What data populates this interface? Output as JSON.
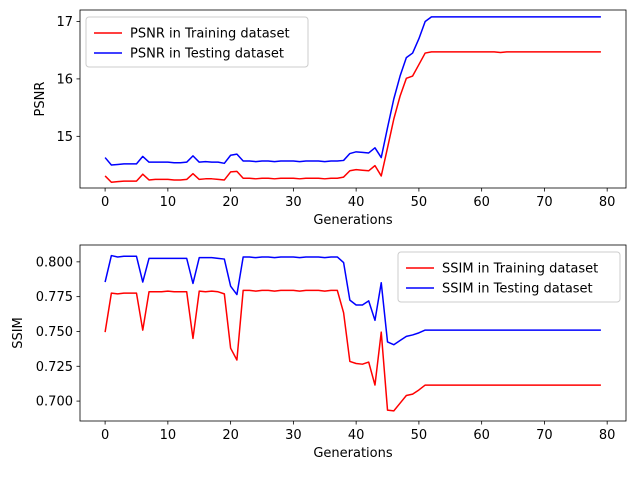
{
  "chart_data": [
    {
      "type": "line",
      "xlabel": "Generations",
      "ylabel": "PSNR",
      "xlim": [
        -4,
        83
      ],
      "ylim": [
        14.1,
        17.2
      ],
      "xticks": [
        0,
        10,
        20,
        30,
        40,
        50,
        60,
        70,
        80
      ],
      "yticks": [
        15,
        16,
        17
      ],
      "legend_position": "top-left",
      "series": [
        {
          "name": "PSNR in Training dataset",
          "color": "#ff0000",
          "x": [
            0,
            1,
            2,
            3,
            4,
            5,
            6,
            7,
            8,
            9,
            10,
            11,
            12,
            13,
            14,
            15,
            16,
            17,
            18,
            19,
            20,
            21,
            22,
            23,
            24,
            25,
            26,
            27,
            28,
            29,
            30,
            31,
            32,
            33,
            34,
            35,
            36,
            37,
            38,
            39,
            40,
            41,
            42,
            43,
            44,
            45,
            46,
            47,
            48,
            49,
            50,
            51,
            52,
            53,
            54,
            55,
            56,
            57,
            58,
            59,
            60,
            61,
            62,
            63,
            64,
            65,
            66,
            67,
            68,
            69,
            70,
            71,
            72,
            73,
            74,
            75,
            76,
            77,
            78,
            79
          ],
          "y": [
            14.31,
            14.2,
            14.21,
            14.22,
            14.22,
            14.22,
            14.34,
            14.24,
            14.25,
            14.25,
            14.25,
            14.24,
            14.24,
            14.25,
            14.35,
            14.25,
            14.26,
            14.26,
            14.25,
            14.24,
            14.38,
            14.39,
            14.27,
            14.27,
            14.26,
            14.27,
            14.27,
            14.26,
            14.27,
            14.27,
            14.27,
            14.26,
            14.27,
            14.27,
            14.27,
            14.26,
            14.27,
            14.27,
            14.29,
            14.4,
            14.42,
            14.41,
            14.4,
            14.49,
            14.31,
            14.8,
            15.3,
            15.7,
            16.01,
            16.05,
            16.25,
            16.45,
            16.47,
            16.47,
            16.47,
            16.47,
            16.47,
            16.47,
            16.47,
            16.47,
            16.47,
            16.47,
            16.47,
            16.46,
            16.47,
            16.47,
            16.47,
            16.47,
            16.47,
            16.47,
            16.47,
            16.47,
            16.47,
            16.47,
            16.47,
            16.47,
            16.47,
            16.47,
            16.47,
            16.47
          ]
        },
        {
          "name": "PSNR in Testing dataset",
          "color": "#0000ff",
          "x": [
            0,
            1,
            2,
            3,
            4,
            5,
            6,
            7,
            8,
            9,
            10,
            11,
            12,
            13,
            14,
            15,
            16,
            17,
            18,
            19,
            20,
            21,
            22,
            23,
            24,
            25,
            26,
            27,
            28,
            29,
            30,
            31,
            32,
            33,
            34,
            35,
            36,
            37,
            38,
            39,
            40,
            41,
            42,
            43,
            44,
            45,
            46,
            47,
            48,
            49,
            50,
            51,
            52,
            53,
            54,
            55,
            56,
            57,
            58,
            59,
            60,
            61,
            62,
            63,
            64,
            65,
            66,
            67,
            68,
            69,
            70,
            71,
            72,
            73,
            74,
            75,
            76,
            77,
            78,
            79
          ],
          "y": [
            14.63,
            14.5,
            14.51,
            14.52,
            14.52,
            14.52,
            14.65,
            14.55,
            14.55,
            14.55,
            14.55,
            14.54,
            14.54,
            14.55,
            14.66,
            14.55,
            14.56,
            14.55,
            14.55,
            14.53,
            14.67,
            14.69,
            14.57,
            14.57,
            14.56,
            14.57,
            14.57,
            14.56,
            14.57,
            14.57,
            14.57,
            14.56,
            14.57,
            14.57,
            14.57,
            14.56,
            14.57,
            14.57,
            14.58,
            14.7,
            14.73,
            14.72,
            14.71,
            14.8,
            14.63,
            15.15,
            15.65,
            16.05,
            16.37,
            16.45,
            16.7,
            17.0,
            17.08,
            17.08,
            17.08,
            17.08,
            17.08,
            17.08,
            17.08,
            17.08,
            17.08,
            17.08,
            17.08,
            17.08,
            17.08,
            17.08,
            17.08,
            17.08,
            17.08,
            17.08,
            17.08,
            17.08,
            17.08,
            17.08,
            17.08,
            17.08,
            17.08,
            17.08,
            17.08,
            17.08
          ]
        }
      ]
    },
    {
      "type": "line",
      "xlabel": "Generations",
      "ylabel": "SSIM",
      "xlim": [
        -4,
        83
      ],
      "ylim": [
        0.6857,
        0.8121
      ],
      "xticks": [
        0,
        10,
        20,
        30,
        40,
        50,
        60,
        70,
        80
      ],
      "yticks": [
        0.7,
        0.725,
        0.75,
        0.775,
        0.8
      ],
      "legend_position": "top-right",
      "series": [
        {
          "name": "SSIM in Training dataset",
          "color": "#ff0000",
          "x": [
            0,
            1,
            2,
            3,
            4,
            5,
            6,
            7,
            8,
            9,
            10,
            11,
            12,
            13,
            14,
            15,
            16,
            17,
            18,
            19,
            20,
            21,
            22,
            23,
            24,
            25,
            26,
            27,
            28,
            29,
            30,
            31,
            32,
            33,
            34,
            35,
            36,
            37,
            38,
            39,
            40,
            41,
            42,
            43,
            44,
            45,
            46,
            47,
            48,
            49,
            50,
            51,
            52,
            53,
            54,
            55,
            56,
            57,
            58,
            59,
            60,
            61,
            62,
            63,
            64,
            65,
            66,
            67,
            68,
            69,
            70,
            71,
            72,
            73,
            74,
            75,
            76,
            77,
            78,
            79
          ],
          "y": [
            0.7495,
            0.7775,
            0.777,
            0.7775,
            0.7775,
            0.7775,
            0.751,
            0.7785,
            0.7785,
            0.7785,
            0.779,
            0.7785,
            0.7785,
            0.7785,
            0.745,
            0.779,
            0.7785,
            0.779,
            0.7785,
            0.777,
            0.738,
            0.7295,
            0.7795,
            0.7795,
            0.779,
            0.7795,
            0.7795,
            0.779,
            0.7795,
            0.7795,
            0.7795,
            0.779,
            0.7795,
            0.7795,
            0.7795,
            0.779,
            0.7795,
            0.7795,
            0.7635,
            0.7285,
            0.727,
            0.7265,
            0.728,
            0.7115,
            0.7495,
            0.6935,
            0.693,
            0.6985,
            0.704,
            0.705,
            0.708,
            0.7115,
            0.7115,
            0.7115,
            0.7115,
            0.7115,
            0.7115,
            0.7115,
            0.7115,
            0.7115,
            0.7115,
            0.7115,
            0.7115,
            0.7115,
            0.7115,
            0.7115,
            0.7115,
            0.7115,
            0.7115,
            0.7115,
            0.7115,
            0.7115,
            0.7115,
            0.7115,
            0.7115,
            0.7115,
            0.7115,
            0.7115,
            0.7115,
            0.7115
          ]
        },
        {
          "name": "SSIM in Testing dataset",
          "color": "#0000ff",
          "x": [
            0,
            1,
            2,
            3,
            4,
            5,
            6,
            7,
            8,
            9,
            10,
            11,
            12,
            13,
            14,
            15,
            16,
            17,
            18,
            19,
            20,
            21,
            22,
            23,
            24,
            25,
            26,
            27,
            28,
            29,
            30,
            31,
            32,
            33,
            34,
            35,
            36,
            37,
            38,
            39,
            40,
            41,
            42,
            43,
            44,
            45,
            46,
            47,
            48,
            49,
            50,
            51,
            52,
            53,
            54,
            55,
            56,
            57,
            58,
            59,
            60,
            61,
            62,
            63,
            64,
            65,
            66,
            67,
            68,
            69,
            70,
            71,
            72,
            73,
            74,
            75,
            76,
            77,
            78,
            79
          ],
          "y": [
            0.7855,
            0.8045,
            0.8035,
            0.804,
            0.804,
            0.804,
            0.7855,
            0.8025,
            0.8025,
            0.8025,
            0.8025,
            0.8025,
            0.8025,
            0.8025,
            0.7845,
            0.803,
            0.803,
            0.803,
            0.8025,
            0.802,
            0.7825,
            0.7765,
            0.8035,
            0.8035,
            0.803,
            0.8035,
            0.8035,
            0.803,
            0.8035,
            0.8035,
            0.8035,
            0.803,
            0.8035,
            0.8035,
            0.8035,
            0.803,
            0.8035,
            0.8035,
            0.7995,
            0.7725,
            0.769,
            0.769,
            0.772,
            0.758,
            0.785,
            0.7425,
            0.7405,
            0.7435,
            0.7465,
            0.7475,
            0.749,
            0.751,
            0.751,
            0.751,
            0.751,
            0.751,
            0.751,
            0.751,
            0.751,
            0.751,
            0.751,
            0.751,
            0.751,
            0.751,
            0.751,
            0.751,
            0.751,
            0.751,
            0.751,
            0.751,
            0.751,
            0.751,
            0.751,
            0.751,
            0.751,
            0.751,
            0.751,
            0.751,
            0.751,
            0.751
          ]
        }
      ]
    }
  ]
}
